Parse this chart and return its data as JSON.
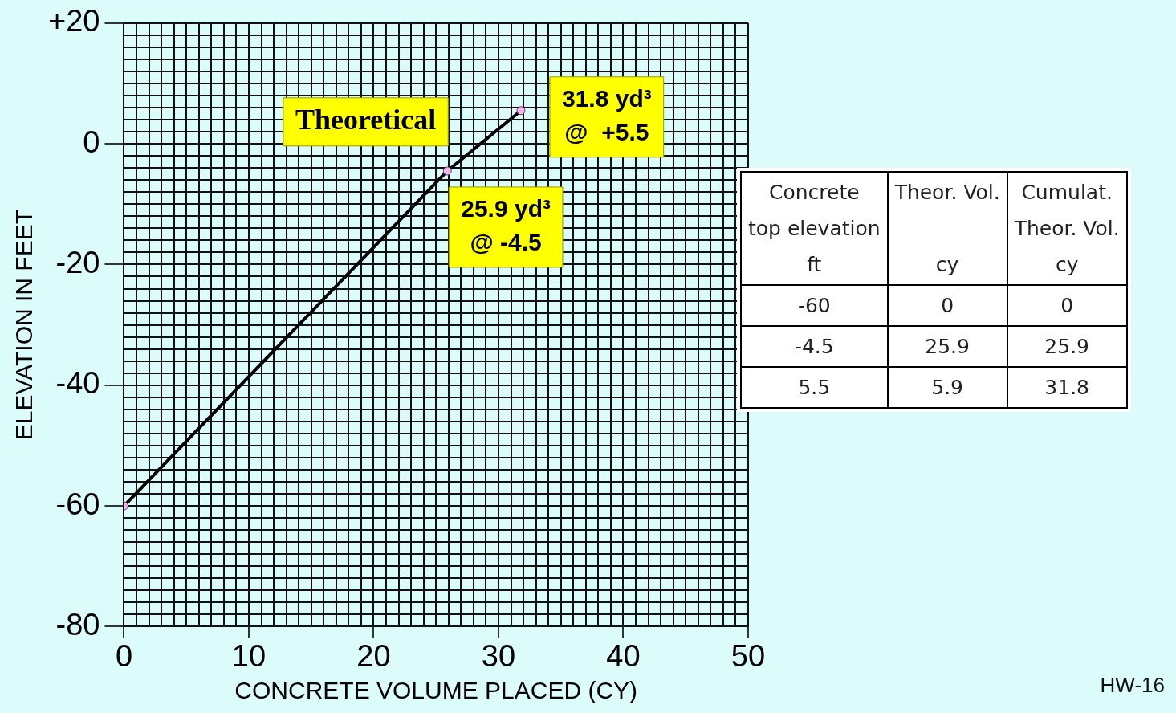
{
  "chart_data": {
    "type": "line",
    "xlabel": "CONCRETE VOLUME PLACED (CY)",
    "ylabel": "ELEVATION IN FEET",
    "x": [
      0,
      25.9,
      31.8
    ],
    "series": [
      {
        "name": "Theoretical",
        "color": "#000000",
        "values": [
          -60,
          -4.5,
          5.5
        ]
      }
    ],
    "marker": "circle",
    "line_style": "solid",
    "grid": true,
    "legend": false,
    "xlim": [
      0,
      50
    ],
    "ylim": [
      -80,
      20
    ],
    "xticks": [
      0,
      {
        "value": 1,
        "label": null
      },
      {
        "value": 2,
        "label": null
      },
      {
        "value": 3,
        "label": null
      },
      {
        "value": 4,
        "label": null
      },
      {
        "value": 5,
        "label": null
      },
      {
        "value": 6,
        "label": null
      },
      {
        "value": 7,
        "label": null
      },
      {
        "value": 8,
        "label": null
      },
      {
        "value": 9,
        "label": null
      },
      10,
      {
        "value": 11,
        "label": null
      },
      {
        "value": 12,
        "label": null
      },
      {
        "value": 13,
        "label": null
      },
      {
        "value": 14,
        "label": null
      },
      {
        "value": 15,
        "label": null
      },
      {
        "value": 16,
        "label": null
      },
      {
        "value": 17,
        "label": null
      },
      {
        "value": 18,
        "label": null
      },
      {
        "value": 19,
        "label": null
      },
      20,
      {
        "value": 21,
        "label": null
      },
      {
        "value": 22,
        "label": null
      },
      {
        "value": 23,
        "label": null
      },
      {
        "value": 24,
        "label": null
      },
      {
        "value": 25,
        "label": null
      },
      {
        "value": 26,
        "label": null
      },
      {
        "value": 27,
        "label": null
      },
      {
        "value": 28,
        "label": null
      },
      {
        "value": 29,
        "label": null
      },
      30,
      {
        "value": 31,
        "label": null
      },
      {
        "value": 32,
        "label": null
      },
      {
        "value": 33,
        "label": null
      },
      {
        "value": 34,
        "label": null
      },
      {
        "value": 35,
        "label": null
      },
      {
        "value": 36,
        "label": null
      },
      {
        "value": 37,
        "label": null
      },
      {
        "value": 38,
        "label": null
      },
      {
        "value": 39,
        "label": null
      },
      40,
      {
        "value": 41,
        "label": null
      },
      {
        "value": 42,
        "label": null
      },
      {
        "value": 43,
        "label": null
      },
      {
        "value": 44,
        "label": null
      },
      {
        "value": 45,
        "label": null
      },
      {
        "value": 46,
        "label": null
      },
      {
        "value": 47,
        "label": null
      },
      {
        "value": 48,
        "label": null
      },
      {
        "value": 49,
        "label": null
      },
      50
    ],
    "yticks": [
      -80,
      {
        "value": -78,
        "label": null
      },
      {
        "value": -76,
        "label": null
      },
      {
        "value": -74,
        "label": null
      },
      {
        "value": -72,
        "label": null
      },
      {
        "value": -70,
        "label": null
      },
      {
        "value": -68,
        "label": null
      },
      {
        "value": -66,
        "label": null
      },
      {
        "value": -64,
        "label": null
      },
      {
        "value": -62,
        "label": null
      },
      -60,
      {
        "value": -58,
        "label": null
      },
      {
        "value": -56,
        "label": null
      },
      {
        "value": -54,
        "label": null
      },
      {
        "value": -52,
        "label": null
      },
      {
        "value": -50,
        "label": null
      },
      {
        "value": -48,
        "label": null
      },
      {
        "value": -46,
        "label": null
      },
      {
        "value": -44,
        "label": null
      },
      {
        "value": -42,
        "label": null
      },
      -40,
      {
        "value": -38,
        "label": null
      },
      {
        "value": -36,
        "label": null
      },
      {
        "value": -34,
        "label": null
      },
      {
        "value": -32,
        "label": null
      },
      {
        "value": -30,
        "label": null
      },
      {
        "value": -28,
        "label": null
      },
      {
        "value": -26,
        "label": null
      },
      {
        "value": -24,
        "label": null
      },
      {
        "value": -22,
        "label": null
      },
      -20,
      {
        "value": -18,
        "label": null
      },
      {
        "value": -16,
        "label": null
      },
      {
        "value": -14,
        "label": null
      },
      {
        "value": -12,
        "label": null
      },
      {
        "value": -10,
        "label": null
      },
      {
        "value": -8,
        "label": null
      },
      {
        "value": -6,
        "label": null
      },
      {
        "value": -4,
        "label": null
      },
      {
        "value": -2,
        "label": null
      },
      0,
      {
        "value": 2,
        "label": null
      },
      {
        "value": 4,
        "label": null
      },
      {
        "value": 6,
        "label": null
      },
      {
        "value": 8,
        "label": null
      },
      {
        "value": 10,
        "label": null
      },
      {
        "value": 12,
        "label": null
      },
      {
        "value": 14,
        "label": null
      },
      {
        "value": 16,
        "label": null
      },
      {
        "value": 18,
        "label": null
      },
      {
        "value": 20,
        "label": "+20"
      }
    ],
    "annotations": [
      {
        "text": "31.8 yd³\n@  +5.5",
        "x": 31.8,
        "y": 5.5
      },
      {
        "text": "25.9 yd³\n@ -4.5",
        "x": 25.9,
        "y": -4.5
      },
      "Concrete\ntop elevation\nft",
      "Theor. Vol.\n\ncy",
      "Cumulat.\nTheor. Vol.\ncy",
      "-60",
      "0",
      "0",
      "-4.5",
      "25.9",
      "25.9",
      "5.5",
      "5.9",
      "31.8",
      "HW-16"
    ]
  }
}
